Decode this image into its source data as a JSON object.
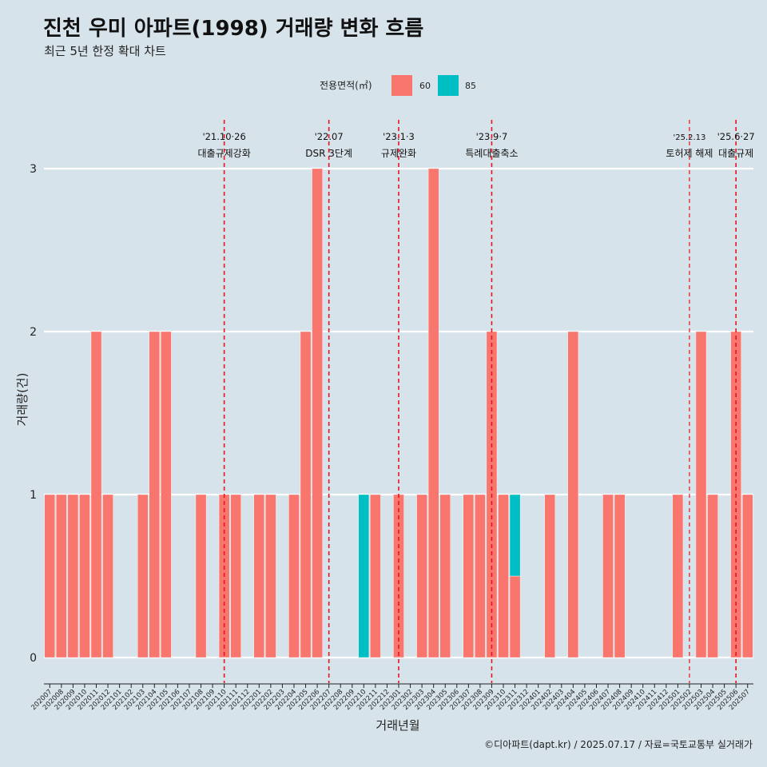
{
  "header": {
    "title": "진천 우미 아파트(1998) 거래량 변화 흐름",
    "subtitle": "최근 5년 한정 확대 차트"
  },
  "legend": {
    "title": "전용면적(㎡)",
    "items": [
      {
        "label": "60",
        "color": "#f8766d"
      },
      {
        "label": "85",
        "color": "#00bfc4"
      }
    ]
  },
  "caption": "©디아파트(dapt.kr) / 2025.07.17 / 자료=국토교통부 실거래가",
  "chart_data": {
    "type": "bar",
    "stacked": true,
    "title": "진천 우미 아파트(1998) 거래량 변화 흐름",
    "subtitle": "최근 5년 한정 확대 차트",
    "xlabel": "거래년월",
    "ylabel": "거래량(건)",
    "ylim": [
      0,
      3.2
    ],
    "yticks": [
      0,
      1,
      2,
      3
    ],
    "grid": true,
    "legend_position": "top",
    "categories": [
      "202007",
      "202008",
      "202009",
      "202010",
      "202011",
      "202012",
      "202101",
      "202102",
      "202103",
      "202104",
      "202105",
      "202106",
      "202107",
      "202108",
      "202109",
      "202110",
      "202111",
      "202112",
      "202201",
      "202202",
      "202203",
      "202204",
      "202205",
      "202206",
      "202207",
      "202208",
      "202209",
      "202210",
      "202211",
      "202212",
      "202301",
      "202302",
      "202303",
      "202304",
      "202305",
      "202306",
      "202307",
      "202308",
      "202309",
      "202310",
      "202311",
      "202312",
      "202401",
      "202402",
      "202403",
      "202404",
      "202405",
      "202406",
      "202407",
      "202408",
      "202409",
      "202410",
      "202411",
      "202412",
      "202501",
      "202502",
      "202503",
      "202504",
      "202505",
      "202506",
      "202507"
    ],
    "series": [
      {
        "name": "60",
        "color": "#f8766d",
        "values": [
          1,
          1,
          1,
          1,
          2,
          1,
          0,
          0,
          1,
          2,
          2,
          0,
          0,
          1,
          0,
          1,
          1,
          0,
          1,
          1,
          0,
          1,
          2,
          3,
          0,
          0,
          0,
          0,
          1,
          0,
          1,
          0,
          1,
          3,
          1,
          0,
          1,
          1,
          2,
          1,
          0.5,
          0,
          0,
          1,
          0,
          2,
          0,
          0,
          1,
          1,
          0,
          0,
          0,
          0,
          1,
          0,
          2,
          1,
          0,
          2,
          1
        ]
      },
      {
        "name": "85",
        "color": "#00bfc4",
        "values": [
          0,
          0,
          0,
          0,
          0,
          0,
          0,
          0,
          0,
          0,
          0,
          0,
          0,
          0,
          0,
          0,
          0,
          0,
          0,
          0,
          0,
          0,
          0,
          0,
          0,
          0,
          0,
          1,
          0,
          0,
          0,
          0,
          0,
          0,
          0,
          0,
          0,
          0,
          0,
          0,
          0.5,
          0,
          0,
          0,
          0,
          0,
          0,
          0,
          0,
          0,
          0,
          0,
          0,
          0,
          0,
          0,
          0,
          0,
          0,
          0,
          0
        ]
      }
    ],
    "annotations": [
      {
        "month": "202110",
        "date": "'21.10·26",
        "label": "대출규제강화",
        "small": false
      },
      {
        "month": "202207",
        "date": "'22.07",
        "label": "DSR 3단계",
        "small": false
      },
      {
        "month": "202301",
        "date": "'23.1·3",
        "label": "규제완화",
        "small": false
      },
      {
        "month": "202309",
        "date": "'23.9·7",
        "label": "특례대출축소",
        "small": false
      },
      {
        "month": "202502",
        "date": "'25.2.13",
        "label": "토허제 해제",
        "small": true
      },
      {
        "month": "202506",
        "date": "'25.6·27",
        "label": "대출규제",
        "small": false
      }
    ]
  }
}
